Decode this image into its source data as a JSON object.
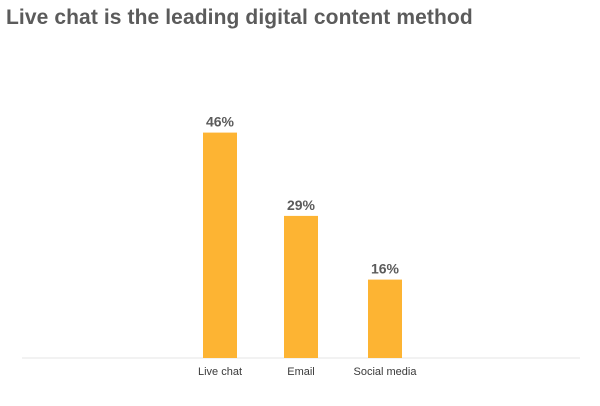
{
  "chart_data": {
    "type": "bar",
    "title": "Live chat is the leading digital content method",
    "categories": [
      "Live chat",
      "Email",
      "Social media"
    ],
    "values": [
      46,
      29,
      16
    ],
    "value_labels": [
      "46%",
      "29%",
      "16%"
    ],
    "xlabel": "",
    "ylabel": "",
    "ylim": [
      0,
      50
    ],
    "grid": false,
    "legend": "none",
    "colors": {
      "bar": "#FDB433",
      "baseline": "#e6e6e6",
      "title": "#5b5b5b",
      "value_label": "#5b5b5b",
      "tick_label": "#3a3a3a"
    }
  }
}
